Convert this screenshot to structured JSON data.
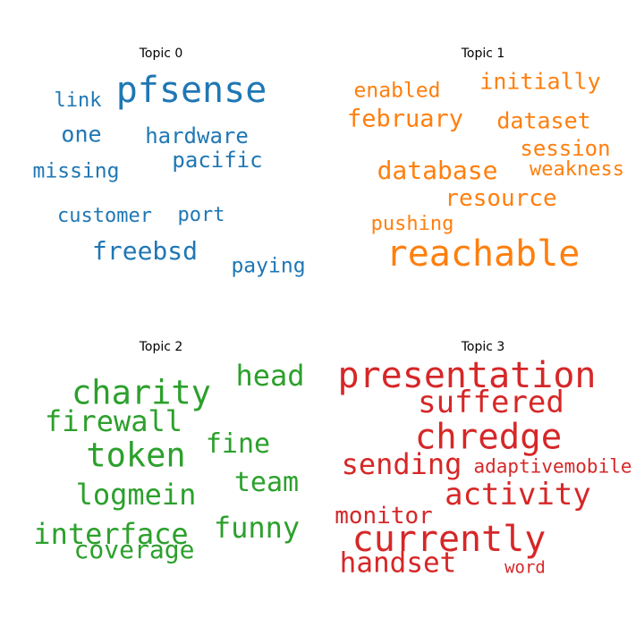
{
  "chart_data": {
    "type": "wordcloud",
    "panels": [
      {
        "title": "Topic 0",
        "color": "#1f77b4",
        "words": [
          {
            "text": "pfsense",
            "weight": 1.0
          },
          {
            "text": "link",
            "weight": 0.55
          },
          {
            "text": "one",
            "weight": 0.62
          },
          {
            "text": "hardware",
            "weight": 0.6
          },
          {
            "text": "pacific",
            "weight": 0.6
          },
          {
            "text": "missing",
            "weight": 0.58
          },
          {
            "text": "customer",
            "weight": 0.56
          },
          {
            "text": "port",
            "weight": 0.56
          },
          {
            "text": "freebsd",
            "weight": 0.7
          },
          {
            "text": "paying",
            "weight": 0.58
          }
        ]
      },
      {
        "title": "Topic 1",
        "color": "#ff7f0e",
        "words": [
          {
            "text": "initially",
            "weight": 0.62
          },
          {
            "text": "enabled",
            "weight": 0.58
          },
          {
            "text": "february",
            "weight": 0.68
          },
          {
            "text": "dataset",
            "weight": 0.62
          },
          {
            "text": "session",
            "weight": 0.6
          },
          {
            "text": "database",
            "weight": 0.7
          },
          {
            "text": "weakness",
            "weight": 0.54
          },
          {
            "text": "resource",
            "weight": 0.65
          },
          {
            "text": "pushing",
            "weight": 0.56
          },
          {
            "text": "reachable",
            "weight": 1.0
          }
        ]
      },
      {
        "title": "Topic 2",
        "color": "#2ca02c",
        "words": [
          {
            "text": "head",
            "weight": 0.8
          },
          {
            "text": "charity",
            "weight": 0.92
          },
          {
            "text": "firewall",
            "weight": 0.8
          },
          {
            "text": "fine",
            "weight": 0.76
          },
          {
            "text": "token",
            "weight": 0.92
          },
          {
            "text": "team",
            "weight": 0.76
          },
          {
            "text": "logmein",
            "weight": 0.8
          },
          {
            "text": "funny",
            "weight": 0.8
          },
          {
            "text": "interface",
            "weight": 0.8
          },
          {
            "text": "coverage",
            "weight": 0.7
          }
        ]
      },
      {
        "title": "Topic 3",
        "color": "#d62728",
        "words": [
          {
            "text": "presentation",
            "weight": 1.0
          },
          {
            "text": "suffered",
            "weight": 0.85
          },
          {
            "text": "chredge",
            "weight": 0.98
          },
          {
            "text": "sending",
            "weight": 0.8
          },
          {
            "text": "adaptivemobile",
            "weight": 0.52
          },
          {
            "text": "activity",
            "weight": 0.85
          },
          {
            "text": "monitor",
            "weight": 0.65
          },
          {
            "text": "currently",
            "weight": 1.0
          },
          {
            "text": "handset",
            "weight": 0.78
          },
          {
            "text": "word",
            "weight": 0.48
          }
        ]
      }
    ]
  }
}
